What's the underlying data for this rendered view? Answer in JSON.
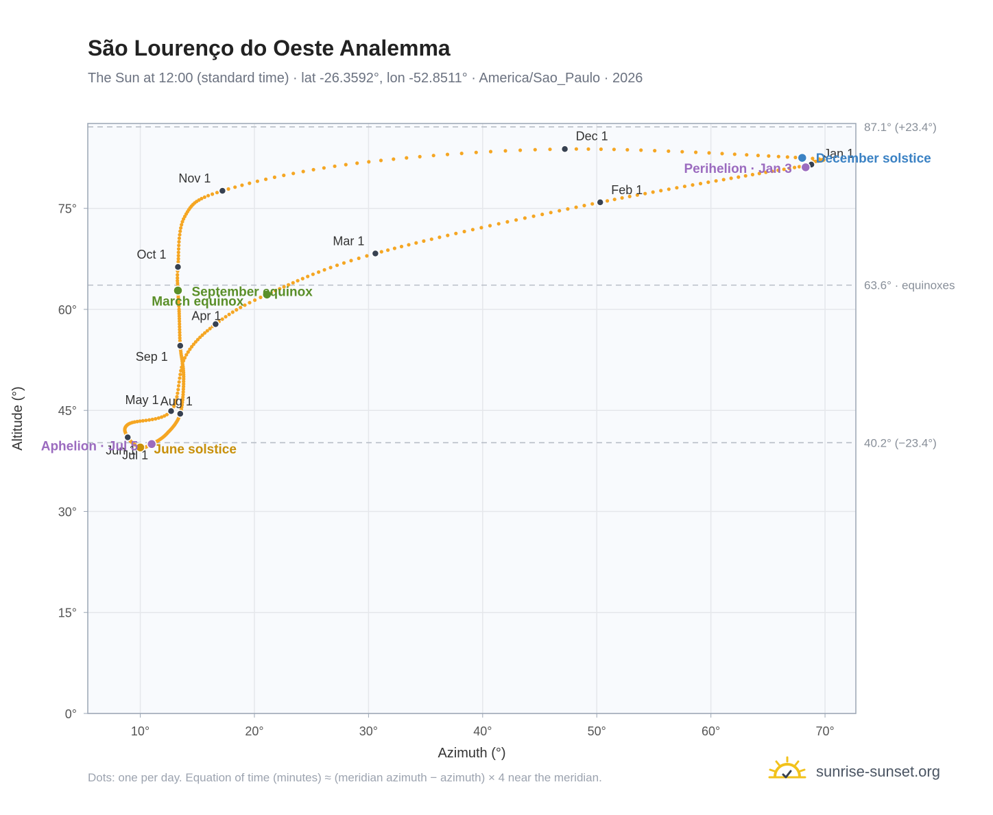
{
  "header": {
    "title": "São Lourenço do Oeste Analemma",
    "subtitle": "The Sun at 12:00 (standard time) · lat -26.3592°, lon -52.8511° · America/Sao_Paulo · 2026"
  },
  "footer": {
    "note": "Dots: one per day. Equation of time (minutes) ≈ (meridian azimuth − azimuth) × 4 near the meridian.",
    "brand": "sunrise-sunset.org"
  },
  "colors": {
    "path": "#f5a623",
    "month_marker": "#374151",
    "equinox": "#5a8f29",
    "june_solstice": "#c8900a",
    "december_solstice": "#3b82c4",
    "apsis": "#9b6bbf",
    "reference_line": "#b8bec8",
    "grid": "#e5e7eb",
    "plot_bg": "#f8fafd"
  },
  "chart_data": {
    "type": "scatter",
    "title": "São Lourenço do Oeste Analemma",
    "xlabel": "Azimuth (°)",
    "ylabel": "Altitude (°)",
    "xlim": [
      5.4,
      72.7
    ],
    "ylim": [
      0,
      87.6
    ],
    "xticks": [
      10,
      20,
      30,
      40,
      50,
      60,
      70
    ],
    "yticks": [
      0,
      15,
      30,
      45,
      60,
      75
    ],
    "xtick_labels": [
      "10°",
      "20°",
      "30°",
      "40°",
      "50°",
      "60°",
      "70°"
    ],
    "ytick_labels": [
      "0°",
      "15°",
      "30°",
      "45°",
      "60°",
      "75°"
    ],
    "grid": true,
    "reference_lines": [
      {
        "altitude": 87.1,
        "label": "87.1° (+23.4°)"
      },
      {
        "altitude": 63.6,
        "label": "63.6° · equinoxes"
      },
      {
        "altitude": 40.2,
        "label": "40.2° (−23.4°)"
      }
    ],
    "path_anchors": [
      {
        "doy": 1,
        "az": 68.8,
        "alt": 81.5
      },
      {
        "doy": 32,
        "az": 50.3,
        "alt": 75.9
      },
      {
        "doy": 60,
        "az": 30.6,
        "alt": 68.3
      },
      {
        "doy": 79,
        "az": 21.1,
        "alt": 62.2
      },
      {
        "doy": 91,
        "az": 16.6,
        "alt": 57.8
      },
      {
        "doy": 105,
        "az": 13.9,
        "alt": 52.8
      },
      {
        "doy": 121,
        "az": 12.7,
        "alt": 44.9
      },
      {
        "doy": 137,
        "az": 9.0,
        "alt": 43.0
      },
      {
        "doy": 152,
        "az": 8.9,
        "alt": 41.0
      },
      {
        "doy": 172,
        "az": 10.0,
        "alt": 39.5
      },
      {
        "doy": 182,
        "az": 11.0,
        "alt": 40.0
      },
      {
        "doy": 196,
        "az": 12.3,
        "alt": 41.5
      },
      {
        "doy": 213,
        "az": 13.5,
        "alt": 44.5
      },
      {
        "doy": 228,
        "az": 13.8,
        "alt": 50.0
      },
      {
        "doy": 244,
        "az": 13.5,
        "alt": 54.6
      },
      {
        "doy": 258,
        "az": 13.4,
        "alt": 60.0
      },
      {
        "doy": 266,
        "az": 13.3,
        "alt": 62.8
      },
      {
        "doy": 274,
        "az": 13.3,
        "alt": 66.3
      },
      {
        "doy": 290,
        "az": 13.9,
        "alt": 73.8
      },
      {
        "doy": 305,
        "az": 17.2,
        "alt": 77.6
      },
      {
        "doy": 320,
        "az": 29.0,
        "alt": 81.7
      },
      {
        "doy": 335,
        "az": 47.2,
        "alt": 83.8
      },
      {
        "doy": 355,
        "az": 68.0,
        "alt": 82.5
      },
      {
        "doy": 365,
        "az": 69.0,
        "alt": 81.9
      }
    ],
    "month_markers": [
      {
        "label": "Jan 1",
        "az": 68.8,
        "alt": 81.5
      },
      {
        "label": "Feb 1",
        "az": 50.3,
        "alt": 75.9
      },
      {
        "label": "Mar 1",
        "az": 30.6,
        "alt": 68.3
      },
      {
        "label": "Apr 1",
        "az": 16.6,
        "alt": 57.8
      },
      {
        "label": "May 1",
        "az": 12.7,
        "alt": 44.9
      },
      {
        "label": "Jun 1",
        "az": 8.9,
        "alt": 41.0
      },
      {
        "label": "Jul 1",
        "az": 11.0,
        "alt": 40.0
      },
      {
        "label": "Aug 1",
        "az": 13.5,
        "alt": 44.5
      },
      {
        "label": "Sep 1",
        "az": 13.5,
        "alt": 54.6
      },
      {
        "label": "Oct 1",
        "az": 13.3,
        "alt": 66.3
      },
      {
        "label": "Nov 1",
        "az": 17.2,
        "alt": 77.6
      },
      {
        "label": "Dec 1",
        "az": 47.2,
        "alt": 83.8
      }
    ],
    "events": [
      {
        "label": "March equinox",
        "kind": "equinox",
        "az": 21.1,
        "alt": 62.2
      },
      {
        "label": "September equinox",
        "kind": "equinox",
        "az": 13.3,
        "alt": 62.8
      },
      {
        "label": "June solstice",
        "kind": "june_solstice",
        "az": 10.0,
        "alt": 39.5
      },
      {
        "label": "December solstice",
        "kind": "december_solstice",
        "az": 68.0,
        "alt": 82.5
      },
      {
        "label": "Perihelion · Jan 3",
        "kind": "apsis",
        "az": 68.3,
        "alt": 81.1
      },
      {
        "label": "Aphelion · Jul 5",
        "kind": "apsis",
        "az": 11.0,
        "alt": 40.0
      }
    ]
  }
}
